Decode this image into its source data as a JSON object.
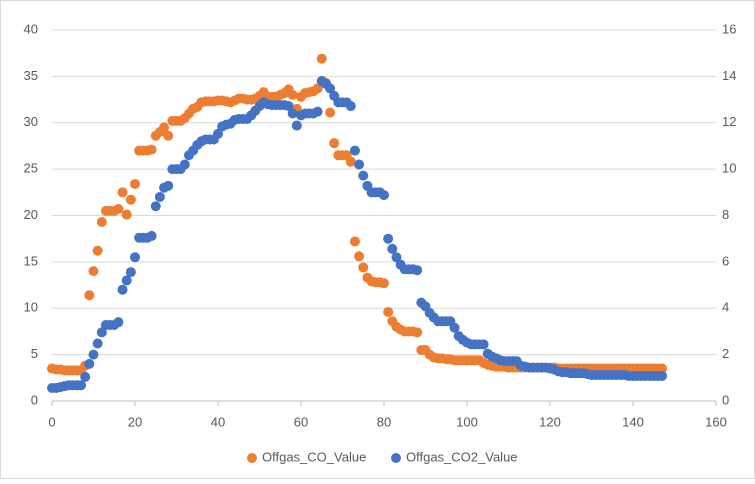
{
  "chart_data": {
    "type": "scatter",
    "x": [
      0,
      1,
      2,
      3,
      4,
      5,
      6,
      7,
      8,
      9,
      10,
      11,
      12,
      13,
      14,
      15,
      16,
      17,
      18,
      19,
      20,
      21,
      22,
      23,
      24,
      25,
      26,
      27,
      28,
      29,
      30,
      31,
      32,
      33,
      34,
      35,
      36,
      37,
      38,
      39,
      40,
      41,
      42,
      43,
      44,
      45,
      46,
      47,
      48,
      49,
      50,
      51,
      52,
      53,
      54,
      55,
      56,
      57,
      58,
      59,
      60,
      61,
      62,
      63,
      64,
      65,
      66,
      67,
      68,
      69,
      70,
      71,
      72,
      73,
      74,
      75,
      76,
      77,
      78,
      79,
      80,
      81,
      82,
      83,
      84,
      85,
      86,
      87,
      88,
      89,
      90,
      91,
      92,
      93,
      94,
      95,
      96,
      97,
      98,
      99,
      100,
      101,
      102,
      103,
      104,
      105,
      106,
      107,
      108,
      109,
      110,
      111,
      112,
      113,
      114,
      115,
      116,
      117,
      118,
      119,
      120,
      121,
      122,
      123,
      124,
      125,
      126,
      127,
      128,
      129,
      130,
      131,
      132,
      133,
      134,
      135,
      136,
      137,
      138,
      139,
      140,
      141,
      142,
      143,
      144,
      145,
      146,
      147
    ],
    "series": [
      {
        "name": "Offgas_CO_Value",
        "color": "#ed7d31",
        "axis": "y",
        "values": [
          3.5,
          3.4,
          3.4,
          3.3,
          3.3,
          3.3,
          3.3,
          3.3,
          3.8,
          11.4,
          14.0,
          16.2,
          19.3,
          20.5,
          20.5,
          20.5,
          20.7,
          22.5,
          20.1,
          21.7,
          23.4,
          27.0,
          27.0,
          27.0,
          27.1,
          28.6,
          29.0,
          29.5,
          28.6,
          30.2,
          30.2,
          30.2,
          30.5,
          31.0,
          31.5,
          31.7,
          32.2,
          32.3,
          32.3,
          32.3,
          32.4,
          32.4,
          32.3,
          32.2,
          32.4,
          32.6,
          32.6,
          32.5,
          32.5,
          32.6,
          32.9,
          33.3,
          32.8,
          32.8,
          32.8,
          33.0,
          33.2,
          33.6,
          33.0,
          31.5,
          32.8,
          33.2,
          33.3,
          33.4,
          33.7,
          36.9,
          34.3,
          31.1,
          27.8,
          26.5,
          26.5,
          26.5,
          25.8,
          17.2,
          15.6,
          14.4,
          13.3,
          12.9,
          12.8,
          12.8,
          12.7,
          9.6,
          8.6,
          8.0,
          7.7,
          7.5,
          7.5,
          7.5,
          7.4,
          5.5,
          5.5,
          5.0,
          4.7,
          4.6,
          4.6,
          4.5,
          4.5,
          4.4,
          4.4,
          4.4,
          4.4,
          4.4,
          4.4,
          4.4,
          4.1,
          3.9,
          3.8,
          3.7,
          3.7,
          3.7,
          3.6,
          3.6,
          3.6,
          3.6,
          3.6,
          3.6,
          3.6,
          3.6,
          3.6,
          3.6,
          3.6,
          3.6,
          3.5,
          3.5,
          3.5,
          3.5,
          3.5,
          3.5,
          3.5,
          3.5,
          3.5,
          3.5,
          3.5,
          3.5,
          3.5,
          3.5,
          3.5,
          3.5,
          3.5,
          3.5,
          3.5,
          3.5,
          3.5,
          3.5,
          3.5,
          3.5,
          3.5,
          3.5
        ]
      },
      {
        "name": "Offgas_CO2_Value",
        "color": "#4472c4",
        "axis": "y2",
        "values": [
          0.56,
          0.56,
          0.6,
          0.64,
          0.68,
          0.68,
          0.68,
          0.68,
          1.04,
          1.6,
          2.0,
          2.48,
          2.96,
          3.28,
          3.28,
          3.28,
          3.4,
          4.8,
          5.2,
          5.56,
          6.2,
          7.04,
          7.04,
          7.04,
          7.12,
          8.4,
          8.8,
          9.2,
          9.28,
          10.0,
          10.0,
          10.0,
          10.2,
          10.6,
          10.8,
          11.04,
          11.2,
          11.28,
          11.28,
          11.28,
          11.52,
          11.84,
          11.92,
          11.96,
          12.12,
          12.16,
          12.16,
          12.16,
          12.32,
          12.52,
          12.72,
          12.88,
          12.8,
          12.76,
          12.76,
          12.76,
          12.76,
          12.72,
          12.4,
          11.88,
          12.32,
          12.4,
          12.4,
          12.4,
          12.48,
          13.8,
          13.68,
          13.48,
          13.16,
          12.88,
          12.88,
          12.88,
          12.72,
          10.8,
          10.2,
          9.72,
          9.28,
          9.0,
          9.0,
          9.0,
          8.88,
          7.0,
          6.56,
          6.2,
          5.88,
          5.68,
          5.68,
          5.68,
          5.64,
          4.24,
          4.08,
          3.8,
          3.6,
          3.44,
          3.44,
          3.44,
          3.44,
          3.16,
          2.8,
          2.64,
          2.52,
          2.44,
          2.44,
          2.44,
          2.44,
          2.04,
          1.92,
          1.84,
          1.76,
          1.72,
          1.72,
          1.72,
          1.72,
          1.52,
          1.48,
          1.44,
          1.44,
          1.44,
          1.44,
          1.44,
          1.4,
          1.36,
          1.28,
          1.24,
          1.24,
          1.2,
          1.2,
          1.2,
          1.2,
          1.16,
          1.12,
          1.12,
          1.12,
          1.12,
          1.12,
          1.12,
          1.12,
          1.12,
          1.12,
          1.08,
          1.08,
          1.08,
          1.08,
          1.08,
          1.08,
          1.08,
          1.08,
          1.08
        ]
      }
    ],
    "xlim": [
      0,
      160
    ],
    "xticks": [
      0,
      20,
      40,
      60,
      80,
      100,
      120,
      140,
      160
    ],
    "ylim": [
      0,
      40
    ],
    "yticks": [
      0,
      5,
      10,
      15,
      20,
      25,
      30,
      35,
      40
    ],
    "y2lim": [
      0,
      16
    ],
    "y2ticks": [
      0,
      2,
      4,
      6,
      8,
      10,
      12,
      14,
      16
    ],
    "grid": true,
    "legend": "bottom"
  }
}
